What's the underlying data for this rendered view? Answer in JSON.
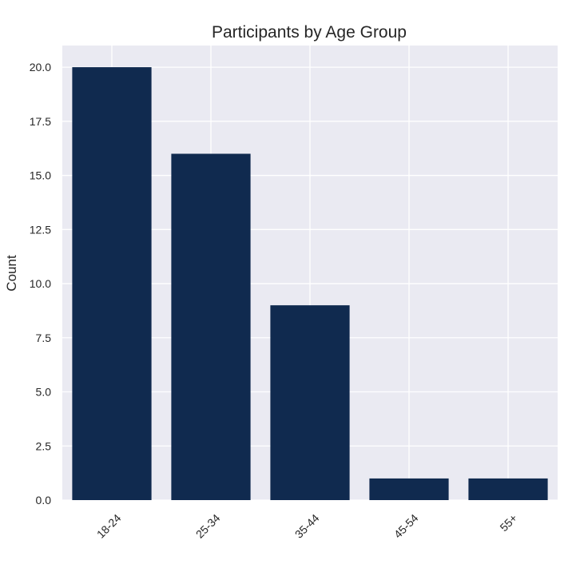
{
  "chart_data": {
    "type": "bar",
    "title": "Participants by Age Group",
    "xlabel": "",
    "ylabel": "Count",
    "categories": [
      "18-24",
      "25-34",
      "35-44",
      "45-54",
      "55+"
    ],
    "values": [
      20,
      16,
      9,
      1,
      1
    ],
    "ylim": [
      0,
      21
    ],
    "yticks": [
      0.0,
      2.5,
      5.0,
      7.5,
      10.0,
      12.5,
      15.0,
      17.5,
      20.0
    ],
    "ytick_labels": [
      "0.0",
      "2.5",
      "5.0",
      "7.5",
      "10.0",
      "12.5",
      "15.0",
      "17.5",
      "20.0"
    ],
    "grid": true,
    "colors": {
      "bar": "#102a4f",
      "plot_background": "#eaeaf2",
      "grid": "#ffffff"
    }
  }
}
